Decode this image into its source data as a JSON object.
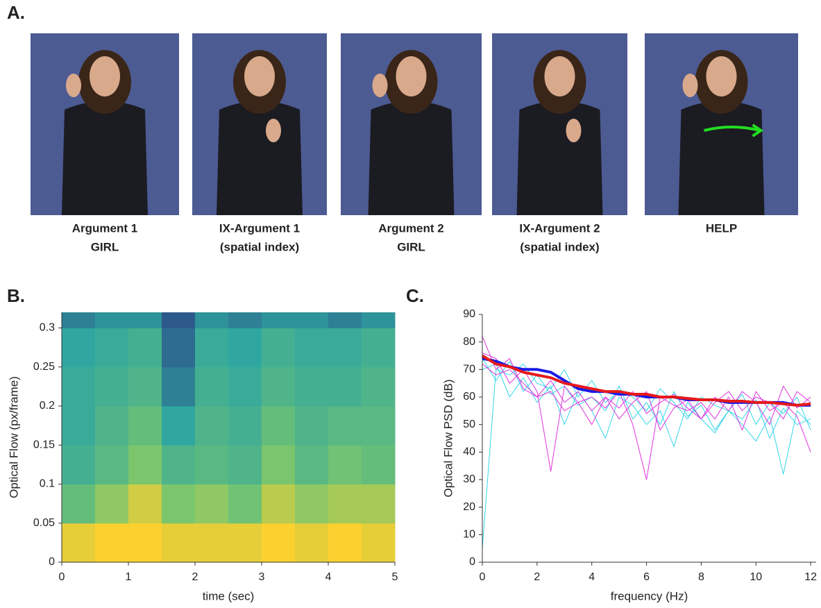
{
  "panels": [
    "A.",
    "B.",
    "C."
  ],
  "photos": [
    {
      "caption": [
        "Argument 1",
        "GIRL"
      ]
    },
    {
      "caption": [
        "IX-Argument 1",
        "(spatial index)"
      ]
    },
    {
      "caption": [
        "Argument 2",
        "GIRL"
      ]
    },
    {
      "caption": [
        "IX-Argument 2",
        "(spatial index)"
      ]
    },
    {
      "caption": [
        "HELP"
      ]
    }
  ],
  "chart_data": [
    {
      "type": "heatmap",
      "xlabel": "time (sec)",
      "ylabel": "Optical Flow (px/frame)",
      "xlim": [
        0,
        5
      ],
      "xticks": [
        0,
        1,
        2,
        3,
        4,
        5
      ],
      "ylim": [
        0,
        0.32
      ],
      "yticks": [
        0,
        0.05,
        0.1,
        0.15,
        0.2,
        0.25,
        0.3
      ],
      "xbins": [
        0,
        0.5,
        1,
        1.5,
        2,
        2.5,
        3,
        3.5,
        4,
        4.5,
        5
      ],
      "ybins": [
        0,
        0.05,
        0.1,
        0.15,
        0.2,
        0.25,
        0.3,
        0.32
      ],
      "z": [
        [
          0.95,
          1,
          1,
          0.95,
          0.95,
          0.95,
          1,
          0.95,
          1,
          0.95
        ],
        [
          0.6,
          0.75,
          0.9,
          0.7,
          0.75,
          0.65,
          0.85,
          0.75,
          0.8,
          0.8
        ],
        [
          0.45,
          0.55,
          0.7,
          0.5,
          0.55,
          0.5,
          0.7,
          0.55,
          0.65,
          0.6
        ],
        [
          0.4,
          0.5,
          0.6,
          0.35,
          0.5,
          0.45,
          0.6,
          0.5,
          0.55,
          0.55
        ],
        [
          0.4,
          0.45,
          0.5,
          0.25,
          0.45,
          0.4,
          0.5,
          0.45,
          0.45,
          0.5
        ],
        [
          0.35,
          0.4,
          0.45,
          0.2,
          0.4,
          0.35,
          0.45,
          0.4,
          0.4,
          0.45
        ],
        [
          0.25,
          0.3,
          0.3,
          0.15,
          0.3,
          0.25,
          0.3,
          0.3,
          0.25,
          0.3
        ]
      ]
    },
    {
      "type": "line",
      "xlabel": "frequency (Hz)",
      "ylabel": "Optical Flow PSD (dB)",
      "xlim": [
        0,
        12.2
      ],
      "xticks": [
        0,
        2,
        4,
        6,
        8,
        10,
        12
      ],
      "ylim": [
        0,
        90
      ],
      "yticks": [
        0,
        10,
        20,
        30,
        40,
        50,
        60,
        70,
        80,
        90
      ],
      "x": [
        0,
        0.5,
        1,
        1.5,
        2,
        2.5,
        3,
        3.5,
        4,
        4.5,
        5,
        5.5,
        6,
        6.5,
        7,
        7.5,
        8,
        8.5,
        9,
        9.5,
        10,
        10.5,
        11,
        11.5,
        12
      ],
      "series": [
        {
          "color": "#33d6e8",
          "width": 1,
          "values": [
            5,
            70,
            68,
            72,
            65,
            63,
            70,
            60,
            66,
            58,
            62,
            60,
            55,
            63,
            58,
            52,
            60,
            57,
            55,
            61,
            50,
            58,
            54,
            60,
            48
          ]
        },
        {
          "color": "#33d6e8",
          "width": 1,
          "values": [
            74,
            66,
            73,
            62,
            68,
            61,
            64,
            57,
            60,
            55,
            64,
            52,
            58,
            50,
            62,
            53,
            57,
            48,
            55,
            52,
            59,
            45,
            56,
            50,
            52
          ]
        },
        {
          "color": "#33d6e8",
          "width": 1,
          "values": [
            70,
            72,
            60,
            67,
            58,
            64,
            50,
            62,
            55,
            45,
            60,
            57,
            50,
            55,
            42,
            58,
            52,
            47,
            55,
            50,
            44,
            53,
            32,
            55,
            50
          ]
        },
        {
          "color": "#e033e0",
          "width": 1,
          "values": [
            82,
            70,
            74,
            63,
            60,
            66,
            58,
            62,
            55,
            60,
            52,
            58,
            62,
            48,
            56,
            59,
            52,
            60,
            55,
            62,
            58,
            50,
            64,
            56,
            60
          ]
        },
        {
          "color": "#e033e0",
          "width": 1,
          "values": [
            76,
            74,
            65,
            70,
            62,
            33,
            64,
            58,
            60,
            56,
            62,
            50,
            30,
            60,
            57,
            55,
            58,
            52,
            60,
            48,
            62,
            55,
            58,
            53,
            40
          ]
        },
        {
          "color": "#e033e0",
          "width": 1,
          "values": [
            72,
            68,
            70,
            65,
            60,
            62,
            55,
            58,
            50,
            60,
            56,
            62,
            54,
            58,
            61,
            56,
            52,
            58,
            62,
            55,
            60,
            58,
            52,
            62,
            58
          ]
        },
        {
          "color": "#1a1ae6",
          "width": 4,
          "values": [
            74,
            73,
            71,
            70,
            70,
            69,
            66,
            63,
            62,
            62,
            61,
            61,
            60,
            60,
            60,
            59,
            59,
            59,
            58,
            58,
            58,
            58,
            58,
            57,
            57
          ]
        },
        {
          "color": "#e61a1a",
          "width": 4,
          "values": [
            75,
            72,
            71,
            69,
            68,
            67,
            65,
            64,
            63,
            62,
            62,
            61,
            61,
            60,
            60,
            59.5,
            59,
            59,
            58.5,
            58.5,
            58,
            58,
            57.5,
            57,
            57.5
          ]
        }
      ]
    }
  ]
}
